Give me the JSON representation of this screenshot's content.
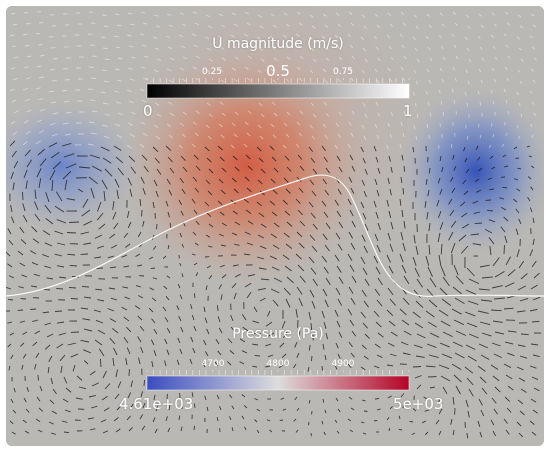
{
  "figure": {
    "velocity_colorbar": {
      "title": "U magnitude (m/s)",
      "min_label": "0",
      "max_label": "1",
      "tick_labels": [
        "0.25",
        "0.5",
        "0.75"
      ],
      "colors": [
        "#000000",
        "#ffffff"
      ]
    },
    "pressure_colorbar": {
      "title": "Pressure (Pa)",
      "min_label": "4.61e+03",
      "max_label": "5e+03",
      "tick_labels": [
        "4700",
        "4800",
        "4900"
      ],
      "colors": [
        "#3b4cc0",
        "#dddddd",
        "#b40426"
      ]
    },
    "background_color": "#bab8b4",
    "vector_color": "#1a1a1a",
    "interface_line_color": "#ffffff"
  }
}
